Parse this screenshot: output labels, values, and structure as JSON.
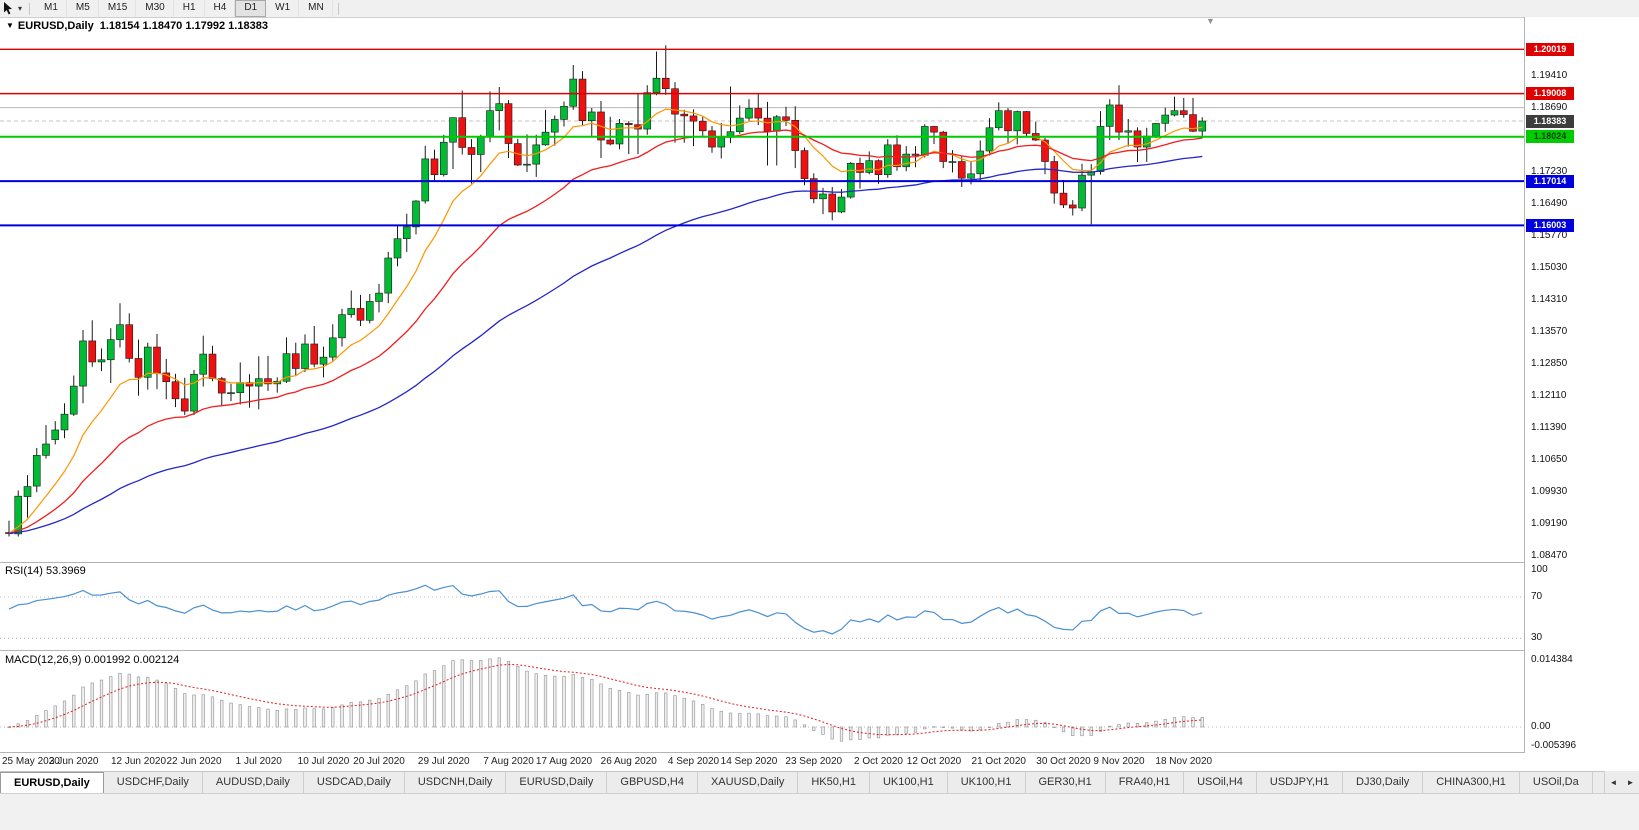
{
  "ui": {
    "toolbar": {
      "timeframes": [
        {
          "label": "M1",
          "active": false
        },
        {
          "label": "M5",
          "active": false
        },
        {
          "label": "M15",
          "active": false
        },
        {
          "label": "M30",
          "active": false
        },
        {
          "label": "H1",
          "active": false
        },
        {
          "label": "H4",
          "active": false
        },
        {
          "label": "D1",
          "active": true
        },
        {
          "label": "W1",
          "active": false
        },
        {
          "label": "MN",
          "active": false
        }
      ]
    },
    "chart_title": {
      "symbol": "EURUSD,Daily",
      "ohlc": "1.18154 1.18470 1.17992 1.18383"
    },
    "icons": {
      "chart_menu": "▼",
      "price_shift": "▼",
      "toolbar_dropdown": "▾",
      "tabs_scroll_left": "◄",
      "tabs_scroll_right": "►"
    },
    "rsi": {
      "label": "RSI(14) 53.3969"
    },
    "macd": {
      "label": "MACD(12,26,9) 0.001992 0.002124"
    },
    "tabs": [
      {
        "label": "EURUSD,Daily",
        "active": true
      },
      {
        "label": "USDCHF,Daily",
        "active": false
      },
      {
        "label": "AUDUSD,Daily",
        "active": false
      },
      {
        "label": "USDCAD,Daily",
        "active": false
      },
      {
        "label": "USDCNH,Daily",
        "active": false
      },
      {
        "label": "EURUSD,Daily",
        "active": false
      },
      {
        "label": "GBPUSD,H4",
        "active": false
      },
      {
        "label": "XAUUSD,Daily",
        "active": false
      },
      {
        "label": "HK50,H1",
        "active": false
      },
      {
        "label": "UK100,H1",
        "active": false
      },
      {
        "label": "UK100,H1",
        "active": false
      },
      {
        "label": "GER30,H1",
        "active": false
      },
      {
        "label": "FRA40,H1",
        "active": false
      },
      {
        "label": "USOil,H4",
        "active": false
      },
      {
        "label": "USDJPY,H1",
        "active": false
      },
      {
        "label": "DJ30,Daily",
        "active": false
      },
      {
        "label": "CHINA300,H1",
        "active": false
      },
      {
        "label": "USOil,Da",
        "active": false
      }
    ]
  },
  "chart_data": {
    "type": "candlestick",
    "symbol": "EURUSD",
    "timeframe": "Daily",
    "current_bar": {
      "open": 1.18154,
      "high": 1.1847,
      "low": 1.17992,
      "close": 1.18383
    },
    "y_ticks": [
      "1.19410",
      "1.18690",
      "1.17230",
      "1.16490",
      "1.15770",
      "1.15030",
      "1.14310",
      "1.13570",
      "1.12850",
      "1.12110",
      "1.11390",
      "1.10650",
      "1.09930",
      "1.09190",
      "1.08470"
    ],
    "x_labels": [
      {
        "text": "25 May 2020",
        "i": 0
      },
      {
        "text": "3 Jun 2020",
        "i": 7
      },
      {
        "text": "12 Jun 2020",
        "i": 14
      },
      {
        "text": "22 Jun 2020",
        "i": 20
      },
      {
        "text": "1 Jul 2020",
        "i": 27
      },
      {
        "text": "10 Jul 2020",
        "i": 34
      },
      {
        "text": "20 Jul 2020",
        "i": 40
      },
      {
        "text": "29 Jul 2020",
        "i": 47
      },
      {
        "text": "7 Aug 2020",
        "i": 54
      },
      {
        "text": "17 Aug 2020",
        "i": 60
      },
      {
        "text": "26 Aug 2020",
        "i": 67
      },
      {
        "text": "4 Sep 2020",
        "i": 74
      },
      {
        "text": "14 Sep 2020",
        "i": 80
      },
      {
        "text": "23 Sep 2020",
        "i": 87
      },
      {
        "text": "2 Oct 2020",
        "i": 94
      },
      {
        "text": "12 Oct 2020",
        "i": 100
      },
      {
        "text": "21 Oct 2020",
        "i": 107
      },
      {
        "text": "30 Oct 2020",
        "i": 114
      },
      {
        "text": "9 Nov 2020",
        "i": 120
      },
      {
        "text": "18 Nov 2020",
        "i": 127
      }
    ],
    "price_tags": [
      {
        "text": "1.20019",
        "value": 1.20019,
        "bg": "#dd0000",
        "fg": "#ffffff"
      },
      {
        "text": "1.19008",
        "value": 1.19008,
        "bg": "#dd0000",
        "fg": "#ffffff"
      },
      {
        "text": "1.18383",
        "value": 1.18383,
        "bg": "#3c3c3c",
        "fg": "#ffffff"
      },
      {
        "text": "1.18024",
        "value": 1.18024,
        "bg": "#00cc00",
        "fg": "#073d07"
      },
      {
        "text": "1.17014",
        "value": 1.17014,
        "bg": "#0000dd",
        "fg": "#ffffff"
      },
      {
        "text": "1.16003",
        "value": 1.16003,
        "bg": "#0000dd",
        "fg": "#ffffff"
      }
    ],
    "horizontal_lines": [
      {
        "price": 1.20019,
        "color": "#dd0000",
        "width": 1.4,
        "style": "solid"
      },
      {
        "price": 1.19008,
        "color": "#dd0000",
        "width": 1.4,
        "style": "solid"
      },
      {
        "price": 1.1869,
        "color": "#b8b8b8",
        "width": 1,
        "style": "solid"
      },
      {
        "price": 1.18383,
        "color": "#c4c4c4",
        "width": 1,
        "style": "dashed"
      },
      {
        "price": 1.18024,
        "color": "#00cc00",
        "width": 2,
        "style": "solid"
      },
      {
        "price": 1.17014,
        "color": "#0000dd",
        "width": 2,
        "style": "solid"
      },
      {
        "price": 1.16003,
        "color": "#0000dd",
        "width": 2,
        "style": "solid"
      }
    ],
    "moving_averages": [
      {
        "name": "fast",
        "type": "ema",
        "period": 10,
        "color": "#ff9500",
        "width": 1.2
      },
      {
        "name": "medium",
        "type": "ema",
        "period": 25,
        "color": "#f21d1d",
        "width": 1.3
      },
      {
        "name": "slow",
        "type": "ema",
        "period": 60,
        "color": "#2525cc",
        "width": 1.3
      }
    ],
    "candles": [
      [
        1.09,
        1.0927,
        1.0891,
        1.0898
      ],
      [
        1.0897,
        1.0996,
        1.0891,
        1.0983
      ],
      [
        1.0982,
        1.1031,
        1.0934,
        1.1005
      ],
      [
        1.1006,
        1.1093,
        1.0992,
        1.1076
      ],
      [
        1.1076,
        1.1145,
        1.1069,
        1.1102
      ],
      [
        1.1112,
        1.1154,
        1.1101,
        1.1134
      ],
      [
        1.1134,
        1.1195,
        1.1115,
        1.117
      ],
      [
        1.117,
        1.1258,
        1.1166,
        1.1234
      ],
      [
        1.1234,
        1.1362,
        1.1195,
        1.1337
      ],
      [
        1.1337,
        1.1384,
        1.1278,
        1.1289
      ],
      [
        1.1289,
        1.132,
        1.1268,
        1.1294
      ],
      [
        1.1294,
        1.1366,
        1.1241,
        1.134
      ],
      [
        1.134,
        1.1423,
        1.1322,
        1.1374
      ],
      [
        1.1374,
        1.14,
        1.1288,
        1.1297
      ],
      [
        1.1297,
        1.134,
        1.1212,
        1.1254
      ],
      [
        1.1254,
        1.1333,
        1.1226,
        1.1323
      ],
      [
        1.1323,
        1.1353,
        1.1227,
        1.1264
      ],
      [
        1.1264,
        1.1296,
        1.1204,
        1.1244
      ],
      [
        1.1244,
        1.1262,
        1.1186,
        1.1205
      ],
      [
        1.1205,
        1.1253,
        1.1168,
        1.1177
      ],
      [
        1.1177,
        1.1271,
        1.1168,
        1.1261
      ],
      [
        1.1261,
        1.1349,
        1.1233,
        1.1307
      ],
      [
        1.1307,
        1.1326,
        1.1245,
        1.1251
      ],
      [
        1.1251,
        1.1255,
        1.119,
        1.1218
      ],
      [
        1.1218,
        1.1239,
        1.12,
        1.1219
      ],
      [
        1.1219,
        1.1288,
        1.1192,
        1.1242
      ],
      [
        1.1242,
        1.1261,
        1.1185,
        1.1234
      ],
      [
        1.1234,
        1.1302,
        1.1181,
        1.1251
      ],
      [
        1.1251,
        1.1303,
        1.1223,
        1.1239
      ],
      [
        1.1239,
        1.1254,
        1.1219,
        1.1245
      ],
      [
        1.1245,
        1.1345,
        1.1241,
        1.1308
      ],
      [
        1.1308,
        1.1333,
        1.1259,
        1.1274
      ],
      [
        1.1274,
        1.1352,
        1.1266,
        1.133
      ],
      [
        1.133,
        1.1371,
        1.1277,
        1.1284
      ],
      [
        1.1284,
        1.1324,
        1.1254,
        1.13
      ],
      [
        1.13,
        1.1375,
        1.1292,
        1.1344
      ],
      [
        1.1344,
        1.141,
        1.1324,
        1.1397
      ],
      [
        1.1397,
        1.1452,
        1.139,
        1.1411
      ],
      [
        1.1411,
        1.1442,
        1.1371,
        1.1384
      ],
      [
        1.1384,
        1.1444,
        1.1377,
        1.1427
      ],
      [
        1.1427,
        1.1467,
        1.1402,
        1.1446
      ],
      [
        1.1446,
        1.154,
        1.1423,
        1.1526
      ],
      [
        1.1526,
        1.1601,
        1.1507,
        1.157
      ],
      [
        1.157,
        1.1627,
        1.154,
        1.1597
      ],
      [
        1.1597,
        1.1658,
        1.158,
        1.1656
      ],
      [
        1.1656,
        1.1782,
        1.165,
        1.1752
      ],
      [
        1.1752,
        1.1773,
        1.17,
        1.1716
      ],
      [
        1.1716,
        1.1807,
        1.1712,
        1.179
      ],
      [
        1.179,
        1.1847,
        1.1729,
        1.1846
      ],
      [
        1.1846,
        1.1908,
        1.1762,
        1.1778
      ],
      [
        1.1778,
        1.1797,
        1.1696,
        1.1762
      ],
      [
        1.1762,
        1.1807,
        1.1722,
        1.1803
      ],
      [
        1.1803,
        1.1906,
        1.179,
        1.1862
      ],
      [
        1.1862,
        1.1916,
        1.1817,
        1.1878
      ],
      [
        1.1878,
        1.1886,
        1.1754,
        1.1787
      ],
      [
        1.1787,
        1.1798,
        1.1736,
        1.1738
      ],
      [
        1.1738,
        1.1808,
        1.1722,
        1.174
      ],
      [
        1.174,
        1.1807,
        1.1711,
        1.1784
      ],
      [
        1.1784,
        1.1864,
        1.1782,
        1.1813
      ],
      [
        1.1813,
        1.1851,
        1.1782,
        1.1842
      ],
      [
        1.1842,
        1.1883,
        1.1826,
        1.1872
      ],
      [
        1.1872,
        1.1966,
        1.1864,
        1.1934
      ],
      [
        1.1934,
        1.1952,
        1.1829,
        1.1839
      ],
      [
        1.1839,
        1.1868,
        1.1801,
        1.1859
      ],
      [
        1.1859,
        1.1884,
        1.1754,
        1.1795
      ],
      [
        1.1795,
        1.1848,
        1.1783,
        1.1786
      ],
      [
        1.1786,
        1.1843,
        1.1774,
        1.1833
      ],
      [
        1.1833,
        1.1838,
        1.1763,
        1.183
      ],
      [
        1.183,
        1.1902,
        1.1763,
        1.182
      ],
      [
        1.182,
        1.192,
        1.1807,
        1.1903
      ],
      [
        1.1903,
        1.1997,
        1.1897,
        1.1936
      ],
      [
        1.1936,
        1.2011,
        1.1898,
        1.1912
      ],
      [
        1.1912,
        1.1927,
        1.1789,
        1.1854
      ],
      [
        1.1854,
        1.1864,
        1.1789,
        1.185
      ],
      [
        1.185,
        1.1865,
        1.1781,
        1.1838
      ],
      [
        1.1838,
        1.1848,
        1.1805,
        1.1816
      ],
      [
        1.1816,
        1.1827,
        1.1766,
        1.1779
      ],
      [
        1.1779,
        1.1834,
        1.1753,
        1.1801
      ],
      [
        1.1801,
        1.1917,
        1.1788,
        1.1814
      ],
      [
        1.1814,
        1.1874,
        1.1809,
        1.1845
      ],
      [
        1.1845,
        1.1888,
        1.1839,
        1.1867
      ],
      [
        1.1867,
        1.19,
        1.1829,
        1.1845
      ],
      [
        1.1845,
        1.1882,
        1.1737,
        1.1815
      ],
      [
        1.1815,
        1.1852,
        1.1737,
        1.1848
      ],
      [
        1.1848,
        1.1871,
        1.1827,
        1.184
      ],
      [
        1.184,
        1.1872,
        1.1731,
        1.1771
      ],
      [
        1.1771,
        1.1778,
        1.1692,
        1.1707
      ],
      [
        1.1707,
        1.1719,
        1.1651,
        1.1661
      ],
      [
        1.1661,
        1.1686,
        1.1626,
        1.1672
      ],
      [
        1.1672,
        1.1688,
        1.1612,
        1.1631
      ],
      [
        1.1631,
        1.1683,
        1.1628,
        1.1665
      ],
      [
        1.1665,
        1.1745,
        1.1661,
        1.1742
      ],
      [
        1.1742,
        1.1755,
        1.1684,
        1.1721
      ],
      [
        1.1721,
        1.1769,
        1.1717,
        1.1748
      ],
      [
        1.1748,
        1.1751,
        1.1695,
        1.1716
      ],
      [
        1.1716,
        1.1797,
        1.1709,
        1.1784
      ],
      [
        1.1784,
        1.1806,
        1.1725,
        1.1734
      ],
      [
        1.1734,
        1.1781,
        1.1724,
        1.1763
      ],
      [
        1.1763,
        1.1781,
        1.1733,
        1.176
      ],
      [
        1.176,
        1.1831,
        1.1755,
        1.1826
      ],
      [
        1.1826,
        1.1827,
        1.1786,
        1.1813
      ],
      [
        1.1813,
        1.1816,
        1.1731,
        1.1746
      ],
      [
        1.1746,
        1.1772,
        1.1721,
        1.1746
      ],
      [
        1.1746,
        1.1758,
        1.1688,
        1.1708
      ],
      [
        1.1708,
        1.1746,
        1.1694,
        1.1718
      ],
      [
        1.1718,
        1.1794,
        1.1703,
        1.177
      ],
      [
        1.177,
        1.1845,
        1.176,
        1.1823
      ],
      [
        1.1823,
        1.1881,
        1.1817,
        1.1862
      ],
      [
        1.1862,
        1.1868,
        1.1787,
        1.1816
      ],
      [
        1.1816,
        1.1862,
        1.1785,
        1.186
      ],
      [
        1.186,
        1.1861,
        1.1803,
        1.181
      ],
      [
        1.181,
        1.1837,
        1.1793,
        1.1795
      ],
      [
        1.1795,
        1.18,
        1.1717,
        1.1746
      ],
      [
        1.1746,
        1.1759,
        1.165,
        1.1674
      ],
      [
        1.1674,
        1.1704,
        1.164,
        1.1647
      ],
      [
        1.1647,
        1.1658,
        1.1623,
        1.164
      ],
      [
        1.164,
        1.1741,
        1.1633,
        1.1715
      ],
      [
        1.1715,
        1.174,
        1.1603,
        1.1723
      ],
      [
        1.1723,
        1.1861,
        1.1716,
        1.1826
      ],
      [
        1.1826,
        1.1888,
        1.1795,
        1.1875
      ],
      [
        1.1875,
        1.192,
        1.1795,
        1.1813
      ],
      [
        1.1813,
        1.1843,
        1.178,
        1.1816
      ],
      [
        1.1816,
        1.1824,
        1.1745,
        1.1779
      ],
      [
        1.1779,
        1.1823,
        1.1745,
        1.1804
      ],
      [
        1.1804,
        1.1833,
        1.1799,
        1.1833
      ],
      [
        1.1833,
        1.1869,
        1.1814,
        1.1852
      ],
      [
        1.1852,
        1.1894,
        1.1849,
        1.1862
      ],
      [
        1.1862,
        1.1891,
        1.1846,
        1.1853
      ],
      [
        1.1853,
        1.1891,
        1.1813,
        1.1815
      ],
      [
        1.18154,
        1.1847,
        1.17992,
        1.18383
      ]
    ],
    "rsi_pane": {
      "period": 14,
      "value": 53.3969,
      "color": "#4a90d2",
      "levels": [
        {
          "text": "100",
          "value": 100
        },
        {
          "text": "70",
          "value": 70
        },
        {
          "text": "30",
          "value": 30
        }
      ]
    },
    "macd_pane": {
      "fast": 12,
      "slow": 26,
      "signal": 9,
      "value": 0.001992,
      "signal_value": 0.002124,
      "levels": [
        {
          "text": "0.014384",
          "value": 0.014384
        },
        {
          "text": "0.00",
          "value": 0
        },
        {
          "text": "-0.005396",
          "value": -0.005396
        }
      ]
    }
  }
}
